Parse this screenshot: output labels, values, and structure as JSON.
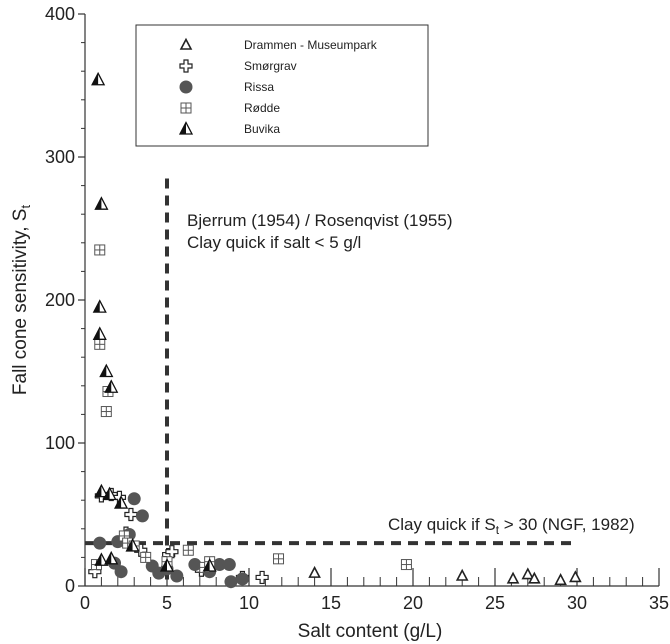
{
  "chart_data": {
    "type": "scatter",
    "xlabel": "Salt content (g/L)",
    "ylabel": "Fall cone sensitivity, S",
    "ylabel_sub": "t",
    "xlim": [
      0,
      35
    ],
    "ylim": [
      0,
      400
    ],
    "xticks": [
      0,
      5,
      10,
      15,
      20,
      25,
      30,
      35
    ],
    "yticks": [
      0,
      100,
      200,
      300,
      400
    ],
    "grid": false,
    "legend": "top-left",
    "series": [
      {
        "name": "Drammen - Museumpark",
        "marker": "triangle-open",
        "points": [
          {
            "x": 14.0,
            "y": 9
          },
          {
            "x": 23.0,
            "y": 7
          },
          {
            "x": 26.1,
            "y": 5
          },
          {
            "x": 27.0,
            "y": 8
          },
          {
            "x": 27.4,
            "y": 5
          },
          {
            "x": 29.0,
            "y": 4
          },
          {
            "x": 29.9,
            "y": 6
          }
        ]
      },
      {
        "name": "Smørgrav",
        "marker": "plus-open",
        "points": [
          {
            "x": 0.6,
            "y": 10
          },
          {
            "x": 1.0,
            "y": 63
          },
          {
            "x": 1.6,
            "y": 64
          },
          {
            "x": 2.1,
            "y": 62
          },
          {
            "x": 2.5,
            "y": 37
          },
          {
            "x": 2.8,
            "y": 50
          },
          {
            "x": 3.4,
            "y": 25
          },
          {
            "x": 5.1,
            "y": 22
          },
          {
            "x": 5.3,
            "y": 24
          },
          {
            "x": 7.1,
            "y": 11
          },
          {
            "x": 9.6,
            "y": 6
          },
          {
            "x": 10.8,
            "y": 6
          }
        ]
      },
      {
        "name": "Rissa",
        "marker": "circle-filled",
        "points": [
          {
            "x": 0.9,
            "y": 30
          },
          {
            "x": 1.8,
            "y": 16
          },
          {
            "x": 2.0,
            "y": 31
          },
          {
            "x": 2.2,
            "y": 10
          },
          {
            "x": 2.7,
            "y": 36
          },
          {
            "x": 3.0,
            "y": 61
          },
          {
            "x": 3.5,
            "y": 49
          },
          {
            "x": 4.1,
            "y": 14
          },
          {
            "x": 4.5,
            "y": 9
          },
          {
            "x": 5.0,
            "y": 12
          },
          {
            "x": 5.6,
            "y": 7
          },
          {
            "x": 6.7,
            "y": 15
          },
          {
            "x": 7.6,
            "y": 10
          },
          {
            "x": 8.2,
            "y": 15
          },
          {
            "x": 8.8,
            "y": 15
          },
          {
            "x": 8.9,
            "y": 3
          },
          {
            "x": 9.6,
            "y": 5
          }
        ]
      },
      {
        "name": "Rødde",
        "marker": "square-plus",
        "points": [
          {
            "x": 0.7,
            "y": 15
          },
          {
            "x": 0.9,
            "y": 235
          },
          {
            "x": 0.9,
            "y": 169
          },
          {
            "x": 1.3,
            "y": 122
          },
          {
            "x": 1.4,
            "y": 136
          },
          {
            "x": 2.4,
            "y": 35
          },
          {
            "x": 2.6,
            "y": 30
          },
          {
            "x": 3.0,
            "y": 28
          },
          {
            "x": 3.7,
            "y": 20
          },
          {
            "x": 5.0,
            "y": 17
          },
          {
            "x": 6.3,
            "y": 25
          },
          {
            "x": 7.3,
            "y": 13
          },
          {
            "x": 7.6,
            "y": 17
          },
          {
            "x": 11.8,
            "y": 19
          },
          {
            "x": 19.6,
            "y": 15
          }
        ]
      },
      {
        "name": "Buvika",
        "marker": "triangle-half",
        "points": [
          {
            "x": 0.8,
            "y": 354
          },
          {
            "x": 1.0,
            "y": 267
          },
          {
            "x": 0.9,
            "y": 195
          },
          {
            "x": 0.9,
            "y": 176
          },
          {
            "x": 1.3,
            "y": 150
          },
          {
            "x": 1.6,
            "y": 139
          },
          {
            "x": 1.0,
            "y": 66
          },
          {
            "x": 1.5,
            "y": 64
          },
          {
            "x": 2.2,
            "y": 58
          },
          {
            "x": 1.0,
            "y": 18
          },
          {
            "x": 1.6,
            "y": 19
          },
          {
            "x": 2.9,
            "y": 28
          },
          {
            "x": 5.0,
            "y": 14
          },
          {
            "x": 7.6,
            "y": 14
          }
        ]
      }
    ],
    "reference_lines": [
      {
        "orientation": "vertical",
        "value": 5,
        "y_top": 285,
        "style": "dashed"
      },
      {
        "orientation": "horizontal",
        "value": 30,
        "x_end": 30,
        "style": "dashed"
      }
    ],
    "annotations": {
      "bjerrum_line1": "Bjerrum (1954) / Rosenqvist (1955)",
      "bjerrum_line2": "Clay quick if salt < 5 g/l",
      "ngf_prefix": "Clay quick if S",
      "ngf_sub": "t",
      "ngf_suffix": " > 30 (NGF, 1982)"
    },
    "colors": {
      "axis": "#333333",
      "marker_fill": "#555555",
      "marker_stroke": "#222222",
      "reference_line": "#333333"
    }
  }
}
